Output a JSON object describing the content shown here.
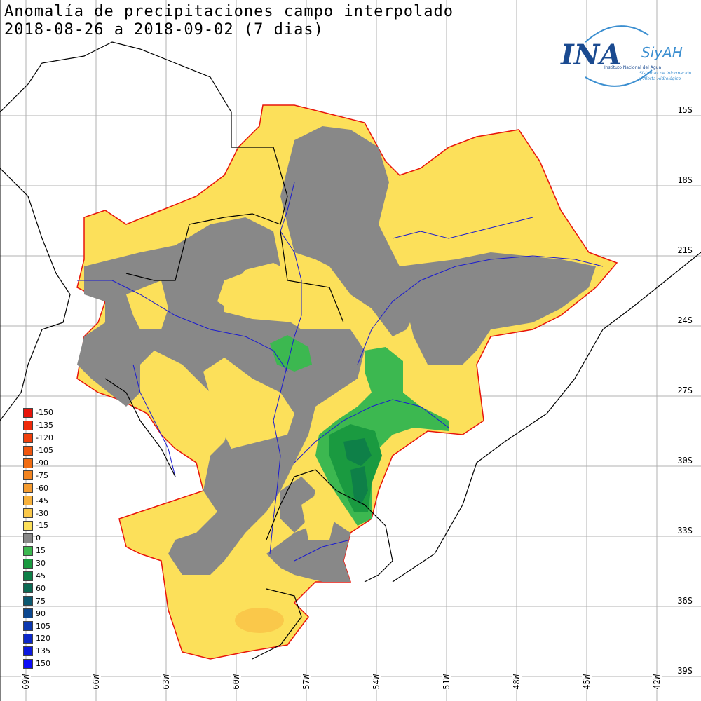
{
  "title": {
    "line1": "Anomalía de precipitaciones campo interpolado",
    "line2": "2018-08-26 a 2018-09-02 (7 dias)"
  },
  "logo": {
    "ina": "INA",
    "siyah": "SiyAH",
    "institute": "Instituto Nacional del Agua",
    "system_line1": "Sistemas de Información",
    "system_line2": "y Alerta Hidrológico"
  },
  "latitude_labels": [
    "15S",
    "18S",
    "21S",
    "24S",
    "27S",
    "30S",
    "33S",
    "36S",
    "39S"
  ],
  "longitude_labels": [
    "69W",
    "66W",
    "63W",
    "60W",
    "57W",
    "54W",
    "51W",
    "48W",
    "45W",
    "42W"
  ],
  "legend": [
    {
      "label": "-150",
      "color": "#e8140a"
    },
    {
      "label": "-135",
      "color": "#ef2a0a"
    },
    {
      "label": "-120",
      "color": "#f0400c"
    },
    {
      "label": "-105",
      "color": "#f0560e"
    },
    {
      "label": "-90",
      "color": "#f06c12"
    },
    {
      "label": "-75",
      "color": "#f28420"
    },
    {
      "label": "-60",
      "color": "#f59c30"
    },
    {
      "label": "-45",
      "color": "#f8b23c"
    },
    {
      "label": "-30",
      "color": "#fac84a"
    },
    {
      "label": "-15",
      "color": "#fce05a"
    },
    {
      "label": "0",
      "color": "#888888"
    },
    {
      "label": "15",
      "color": "#3cb850"
    },
    {
      "label": "30",
      "color": "#1a9a40"
    },
    {
      "label": "45",
      "color": "#0e8048"
    },
    {
      "label": "60",
      "color": "#0c6a54"
    },
    {
      "label": "75",
      "color": "#0c5870"
    },
    {
      "label": "90",
      "color": "#0c4890"
    },
    {
      "label": "105",
      "color": "#0c38b0"
    },
    {
      "label": "120",
      "color": "#0c28c8"
    },
    {
      "label": "135",
      "color": "#0c1ae0"
    },
    {
      "label": "150",
      "color": "#0c0cf8"
    }
  ],
  "colors": {
    "basin_outline": "#e8140a",
    "rivers": "#1a1ad0",
    "borders": "#000000",
    "gridlines": "#b0b0b0"
  }
}
